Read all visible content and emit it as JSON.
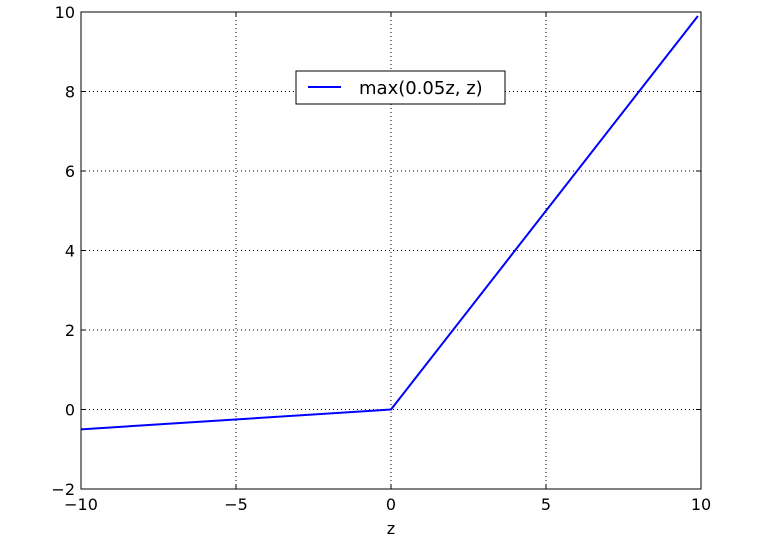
{
  "chart_data": {
    "type": "line",
    "title": "",
    "xlabel": "z",
    "ylabel": "",
    "xlim": [
      -10,
      10
    ],
    "ylim": [
      -2,
      10
    ],
    "x_ticks": [
      -10,
      -5,
      0,
      5,
      10
    ],
    "x_tick_labels": [
      "−10",
      "−5",
      "0",
      "5",
      "10"
    ],
    "y_ticks": [
      -2,
      0,
      2,
      4,
      6,
      8,
      10
    ],
    "y_tick_labels": [
      "−2",
      "0",
      "2",
      "4",
      "6",
      "8",
      "10"
    ],
    "grid": true,
    "legend_position": "top-center",
    "series": [
      {
        "name": "max(0.05z, z)",
        "color": "#0000ff",
        "x": [
          -10,
          0,
          9.9
        ],
        "y": [
          -0.5,
          0,
          9.9
        ]
      }
    ]
  }
}
